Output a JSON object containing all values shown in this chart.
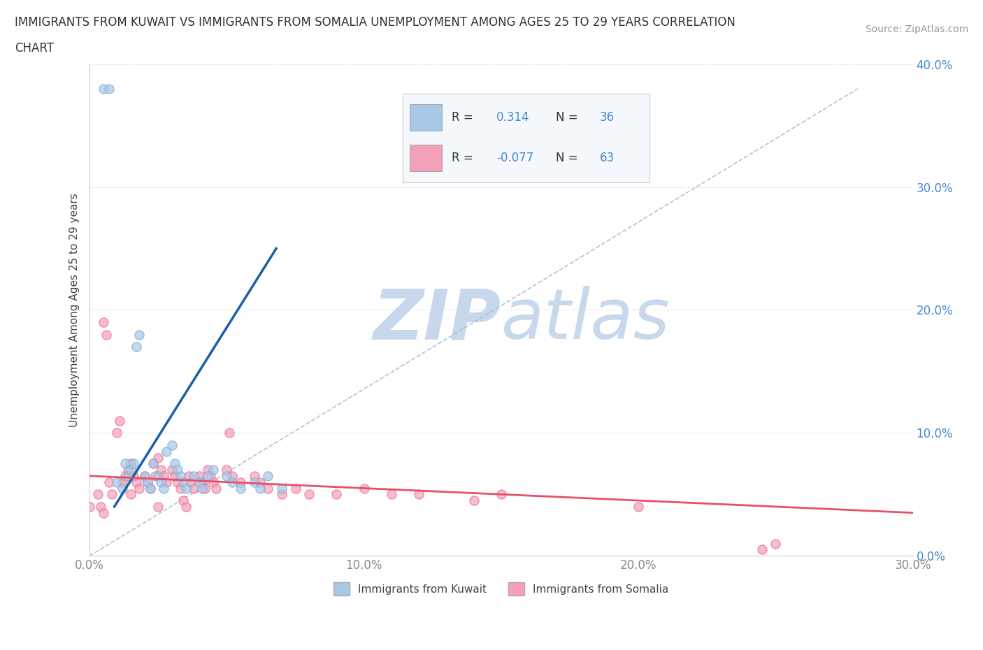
{
  "title_line1": "IMMIGRANTS FROM KUWAIT VS IMMIGRANTS FROM SOMALIA UNEMPLOYMENT AMONG AGES 25 TO 29 YEARS CORRELATION",
  "title_line2": "CHART",
  "source": "Source: ZipAtlas.com",
  "ylabel": "Unemployment Among Ages 25 to 29 years",
  "xlim": [
    0,
    0.3
  ],
  "ylim": [
    0,
    0.4
  ],
  "xticks": [
    0.0,
    0.1,
    0.2,
    0.3
  ],
  "yticks": [
    0.0,
    0.1,
    0.2,
    0.3,
    0.4
  ],
  "kuwait_R": 0.314,
  "kuwait_N": 36,
  "somalia_R": -0.077,
  "somalia_N": 63,
  "kuwait_color": "#a8c8e8",
  "somalia_color": "#f4a0b8",
  "kuwait_edge_color": "#7aaed4",
  "somalia_edge_color": "#e87090",
  "kuwait_trend_color": "#1a5fa8",
  "somalia_trend_color": "#e8506a",
  "ref_line_color": "#aabbd4",
  "watermark_color": "#c8d8ec",
  "grid_color": "#e0e8f0",
  "ytick_color": "#4488cc",
  "xtick_color": "#888888",
  "ylabel_color": "#444444",
  "legend_face_color": "#f5f8fc",
  "legend_edge_color": "#cccccc",
  "kuwait_legend_color": "#a8c8e8",
  "somalia_legend_color": "#f4a0b8",
  "kuwait_scatter_x": [
    0.005,
    0.007,
    0.01,
    0.012,
    0.013,
    0.014,
    0.015,
    0.016,
    0.017,
    0.018,
    0.02,
    0.021,
    0.022,
    0.023,
    0.025,
    0.026,
    0.027,
    0.028,
    0.03,
    0.031,
    0.032,
    0.033,
    0.034,
    0.035,
    0.038,
    0.04,
    0.041,
    0.043,
    0.045,
    0.05,
    0.052,
    0.055,
    0.06,
    0.062,
    0.065,
    0.07
  ],
  "kuwait_scatter_y": [
    0.38,
    0.38,
    0.06,
    0.055,
    0.075,
    0.065,
    0.07,
    0.075,
    0.17,
    0.18,
    0.065,
    0.06,
    0.055,
    0.075,
    0.065,
    0.06,
    0.055,
    0.085,
    0.09,
    0.075,
    0.07,
    0.065,
    0.06,
    0.055,
    0.065,
    0.06,
    0.055,
    0.065,
    0.07,
    0.065,
    0.06,
    0.055,
    0.06,
    0.055,
    0.065,
    0.055
  ],
  "kuwait_trend_x": [
    0.009,
    0.068
  ],
  "kuwait_trend_y": [
    0.04,
    0.25
  ],
  "somalia_scatter_x": [
    0.0,
    0.003,
    0.004,
    0.005,
    0.006,
    0.007,
    0.008,
    0.01,
    0.011,
    0.012,
    0.013,
    0.014,
    0.015,
    0.016,
    0.017,
    0.018,
    0.02,
    0.021,
    0.022,
    0.023,
    0.024,
    0.025,
    0.026,
    0.027,
    0.028,
    0.03,
    0.031,
    0.032,
    0.033,
    0.034,
    0.035,
    0.036,
    0.037,
    0.038,
    0.04,
    0.041,
    0.042,
    0.043,
    0.044,
    0.045,
    0.046,
    0.05,
    0.051,
    0.052,
    0.055,
    0.06,
    0.062,
    0.065,
    0.07,
    0.075,
    0.08,
    0.09,
    0.1,
    0.11,
    0.12,
    0.14,
    0.15,
    0.2,
    0.245,
    0.25,
    0.005,
    0.015,
    0.025
  ],
  "somalia_scatter_y": [
    0.04,
    0.05,
    0.04,
    0.19,
    0.18,
    0.06,
    0.05,
    0.1,
    0.11,
    0.06,
    0.065,
    0.07,
    0.075,
    0.065,
    0.06,
    0.055,
    0.065,
    0.06,
    0.055,
    0.075,
    0.065,
    0.08,
    0.07,
    0.065,
    0.06,
    0.07,
    0.065,
    0.06,
    0.055,
    0.045,
    0.04,
    0.065,
    0.06,
    0.055,
    0.065,
    0.06,
    0.055,
    0.07,
    0.065,
    0.06,
    0.055,
    0.07,
    0.1,
    0.065,
    0.06,
    0.065,
    0.06,
    0.055,
    0.05,
    0.055,
    0.05,
    0.05,
    0.055,
    0.05,
    0.05,
    0.045,
    0.05,
    0.04,
    0.005,
    0.01,
    0.035,
    0.05,
    0.04
  ],
  "somalia_trend_x": [
    0.0,
    0.3
  ],
  "somalia_trend_y": [
    0.065,
    0.035
  ]
}
